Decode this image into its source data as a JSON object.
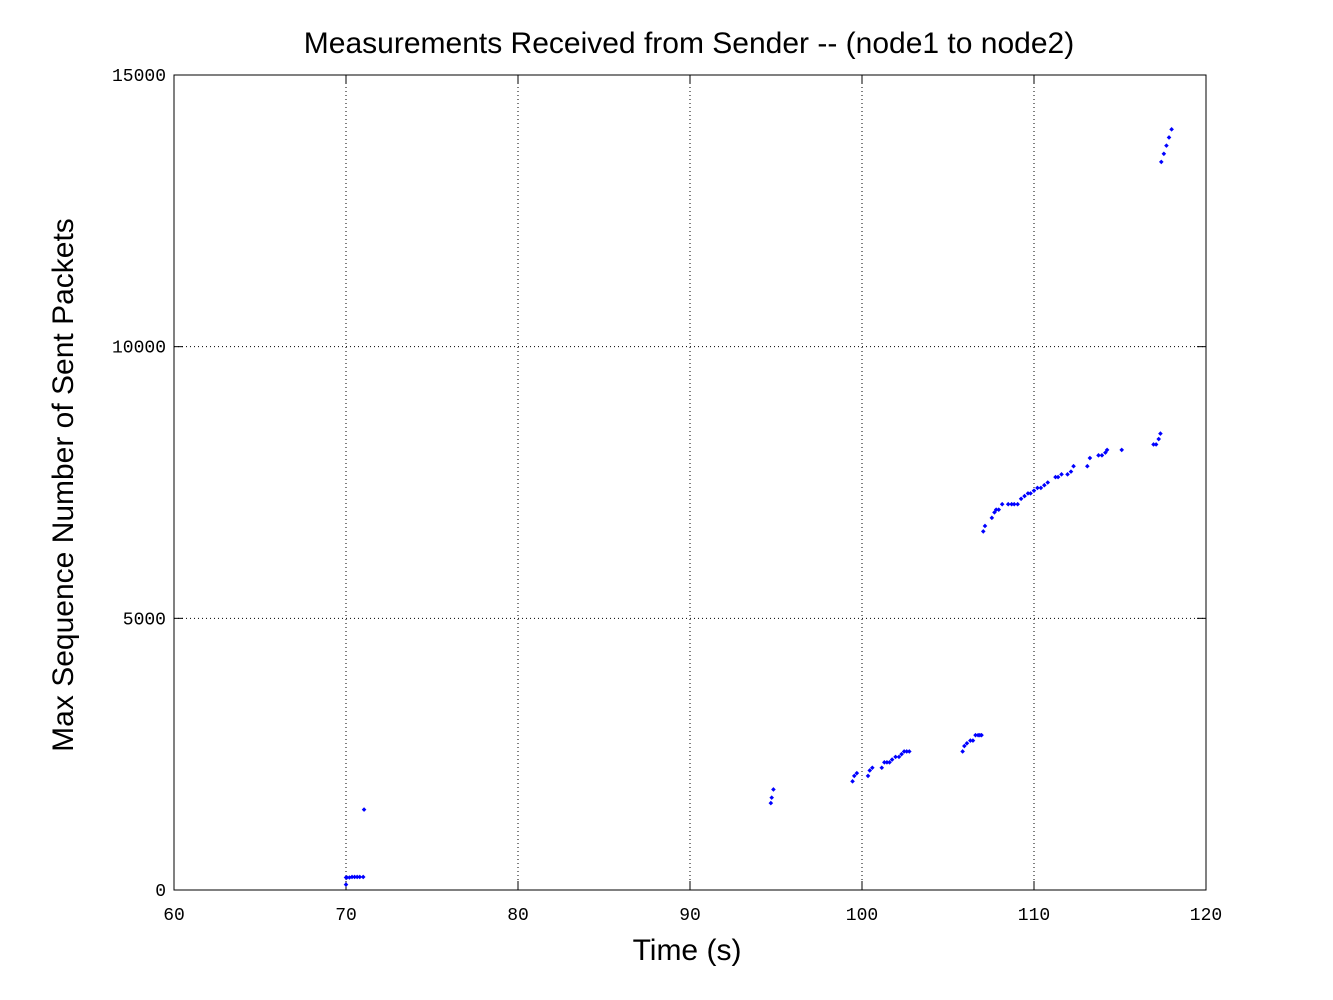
{
  "chart_data": {
    "type": "scatter",
    "title": "Measurements Received from Sender -- (node1 to node2)",
    "xlabel": "Time (s)",
    "ylabel": "Max Sequence Number of Sent Packets",
    "xlim": [
      60,
      120
    ],
    "ylim": [
      0,
      15000
    ],
    "xticks": [
      60,
      70,
      80,
      90,
      100,
      110,
      120
    ],
    "yticks": [
      0,
      5000,
      10000,
      15000
    ],
    "x_tick_labels": [
      "60",
      "70",
      "80",
      "90",
      "100",
      "110",
      "120"
    ],
    "y_tick_labels": [
      "0",
      "5000",
      "10000",
      "15000"
    ],
    "grid": true,
    "marker_color": "#0000ff",
    "series": [
      {
        "x": [
          70.0,
          70.0,
          70.05,
          70.2,
          70.35,
          70.5,
          70.65,
          70.8,
          71.0,
          71.05,
          94.7,
          94.75,
          94.85,
          99.45,
          99.55,
          99.7,
          100.35,
          100.45,
          100.6,
          101.15,
          101.3,
          101.45,
          101.6,
          101.75,
          101.95,
          102.15,
          102.3,
          102.45,
          102.6,
          102.75,
          105.85,
          105.95,
          106.1,
          106.3,
          106.45,
          106.6,
          106.75,
          106.85,
          106.95,
          107.05,
          107.15,
          107.55,
          107.7,
          107.8,
          107.95,
          108.15,
          108.5,
          108.7,
          108.85,
          109.05,
          109.25,
          109.45,
          109.65,
          109.8,
          110.0,
          110.2,
          110.4,
          110.6,
          110.8,
          111.25,
          111.4,
          111.6,
          111.95,
          112.15,
          112.3,
          113.1,
          113.25,
          113.75,
          113.95,
          114.15,
          114.25,
          115.1,
          116.95,
          117.1,
          117.25,
          117.35,
          117.4,
          117.55,
          117.7,
          117.85,
          118.0
        ],
        "y": [
          100,
          230,
          230,
          230,
          240,
          240,
          240,
          240,
          240,
          1480,
          1600,
          1700,
          1850,
          2000,
          2100,
          2150,
          2100,
          2200,
          2250,
          2250,
          2350,
          2350,
          2350,
          2400,
          2450,
          2450,
          2500,
          2550,
          2550,
          2550,
          2550,
          2650,
          2700,
          2750,
          2750,
          2850,
          2850,
          2850,
          2850,
          6600,
          6700,
          6850,
          6950,
          7000,
          7000,
          7100,
          7100,
          7100,
          7100,
          7100,
          7200,
          7250,
          7300,
          7300,
          7350,
          7400,
          7400,
          7450,
          7500,
          7600,
          7600,
          7650,
          7650,
          7700,
          7800,
          7800,
          7950,
          8000,
          8000,
          8050,
          8100,
          8100,
          8200,
          8200,
          8300,
          8400,
          13400,
          13550,
          13700,
          13850,
          14000
        ]
      }
    ]
  }
}
